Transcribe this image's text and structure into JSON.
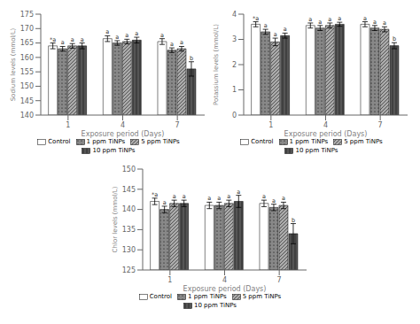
{
  "chart_data": [
    {
      "type": "bar",
      "x_label": "Exposure period (Days)",
      "y_label": "Sodium levels (mmol/L)",
      "categories": [
        "1",
        "4",
        "7"
      ],
      "ylim": [
        140,
        175
      ],
      "yticks": [
        140,
        145,
        150,
        155,
        160,
        165,
        170,
        175
      ],
      "legend": "bottom",
      "series": [
        {
          "name": "Control",
          "color": "white",
          "values": [
            164.0,
            166.5,
            165.5
          ],
          "errors": [
            1.0,
            1.0,
            1.0
          ],
          "letters": [
            "*a",
            "a",
            "a"
          ]
        },
        {
          "name": "1 ppm TiNPs",
          "color": "#888888",
          "values": [
            163.0,
            165.0,
            162.5
          ],
          "errors": [
            0.8,
            0.8,
            0.8
          ],
          "letters": [
            "a",
            "a",
            "a"
          ]
        },
        {
          "name": "5 ppm TiNPs",
          "color": "#aaaaaa",
          "values": [
            164.0,
            165.5,
            163.0
          ],
          "errors": [
            0.8,
            0.8,
            0.8
          ],
          "letters": [
            "a",
            "a",
            "a"
          ]
        },
        {
          "name": "10 ppm TiNPs",
          "color": "#555555",
          "values": [
            164.0,
            166.0,
            156.0
          ],
          "errors": [
            1.0,
            1.0,
            2.5
          ],
          "letters": [
            "a",
            "a",
            "b"
          ]
        }
      ]
    },
    {
      "type": "bar",
      "x_label": "Exposure period (Days)",
      "y_label": "Potassium levels (mmol/L)",
      "categories": [
        "1",
        "4",
        "7"
      ],
      "ylim": [
        0,
        4
      ],
      "yticks": [
        0,
        1,
        2,
        3,
        4
      ],
      "legend": "bottom",
      "series": [
        {
          "name": "Control",
          "color": "white",
          "values": [
            3.6,
            3.55,
            3.6
          ],
          "errors": [
            0.1,
            0.1,
            0.1
          ],
          "letters": [
            "*a",
            "a",
            "a"
          ]
        },
        {
          "name": "1 ppm TiNPs",
          "color": "#888888",
          "values": [
            3.3,
            3.45,
            3.45
          ],
          "errors": [
            0.1,
            0.1,
            0.1
          ],
          "letters": [
            "a",
            "a",
            "a"
          ]
        },
        {
          "name": "5 ppm TiNPs",
          "color": "#aaaaaa",
          "values": [
            2.9,
            3.55,
            3.4
          ],
          "errors": [
            0.15,
            0.1,
            0.1
          ],
          "letters": [
            "a",
            "a",
            "a"
          ]
        },
        {
          "name": "10 ppm TiNPs",
          "color": "#555555",
          "values": [
            3.15,
            3.6,
            2.75
          ],
          "errors": [
            0.1,
            0.08,
            0.12
          ],
          "letters": [
            "a",
            "a",
            "b"
          ]
        }
      ]
    },
    {
      "type": "bar",
      "x_label": "Exposure period (Days)",
      "y_label": "Chlor levels (mmol/L)",
      "categories": [
        "1",
        "4",
        "7"
      ],
      "ylim": [
        125,
        150
      ],
      "yticks": [
        125,
        130,
        135,
        140,
        145,
        150
      ],
      "legend": "bottom",
      "series": [
        {
          "name": "Control",
          "color": "white",
          "values": [
            142.0,
            141.0,
            141.5
          ],
          "errors": [
            0.8,
            0.8,
            0.8
          ],
          "letters": [
            "*a",
            "a",
            "a"
          ]
        },
        {
          "name": "1 ppm TiNPs",
          "color": "#888888",
          "values": [
            140.0,
            141.0,
            140.5
          ],
          "errors": [
            0.8,
            0.8,
            0.8
          ],
          "letters": [
            "a",
            "a",
            "a"
          ]
        },
        {
          "name": "5 ppm TiNPs",
          "color": "#aaaaaa",
          "values": [
            141.5,
            141.5,
            141.0
          ],
          "errors": [
            0.8,
            0.8,
            0.8
          ],
          "letters": [
            "a",
            "a",
            "a"
          ]
        },
        {
          "name": "10 ppm TiNPs",
          "color": "#555555",
          "values": [
            141.5,
            142.0,
            134.0
          ],
          "errors": [
            0.8,
            1.5,
            2.5
          ],
          "letters": [
            "a",
            "a",
            "b"
          ]
        }
      ]
    }
  ]
}
